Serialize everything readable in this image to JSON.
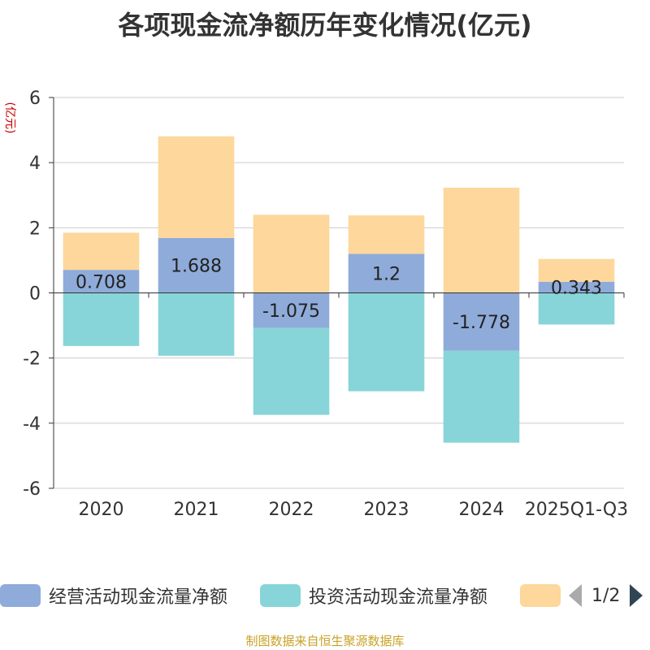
{
  "chart_data": {
    "type": "bar",
    "stacked": true,
    "title": "各项现金流净额历年变化情况(亿元)",
    "ylabel": "(亿元)",
    "categories": [
      "2020",
      "2021",
      "2022",
      "2023",
      "2024",
      "2025Q1-Q3"
    ],
    "ylim": [
      -6,
      6
    ],
    "yticks": [
      -6,
      -4,
      -2,
      0,
      2,
      4,
      6
    ],
    "grid": true,
    "legend_position": "bottom",
    "series": [
      {
        "name": "经营活动现金流量净额",
        "color": "#8fabd9",
        "values": [
          0.708,
          1.688,
          -1.075,
          1.2,
          -1.778,
          0.343
        ],
        "labels": [
          "0.708",
          "1.688",
          "-1.075",
          "1.2",
          "-1.778",
          "0.343"
        ]
      },
      {
        "name": "投资活动现金流量净额",
        "color": "#87d5d8",
        "values": [
          -1.63,
          -1.93,
          -2.67,
          -3.02,
          -2.82,
          -0.97
        ]
      },
      {
        "name": "",
        "color": "#fdd79b",
        "values": [
          1.14,
          3.12,
          2.4,
          1.18,
          3.23,
          0.7
        ]
      }
    ]
  },
  "legend": {
    "items": [
      {
        "label": "经营活动现金流量净额",
        "color": "#8fabd9"
      },
      {
        "label": "投资活动现金流量净额",
        "color": "#87d5d8"
      },
      {
        "label": "",
        "color": "#fdd79b"
      }
    ],
    "page": "1/2"
  },
  "source": "制图数据来自恒生聚源数据库"
}
